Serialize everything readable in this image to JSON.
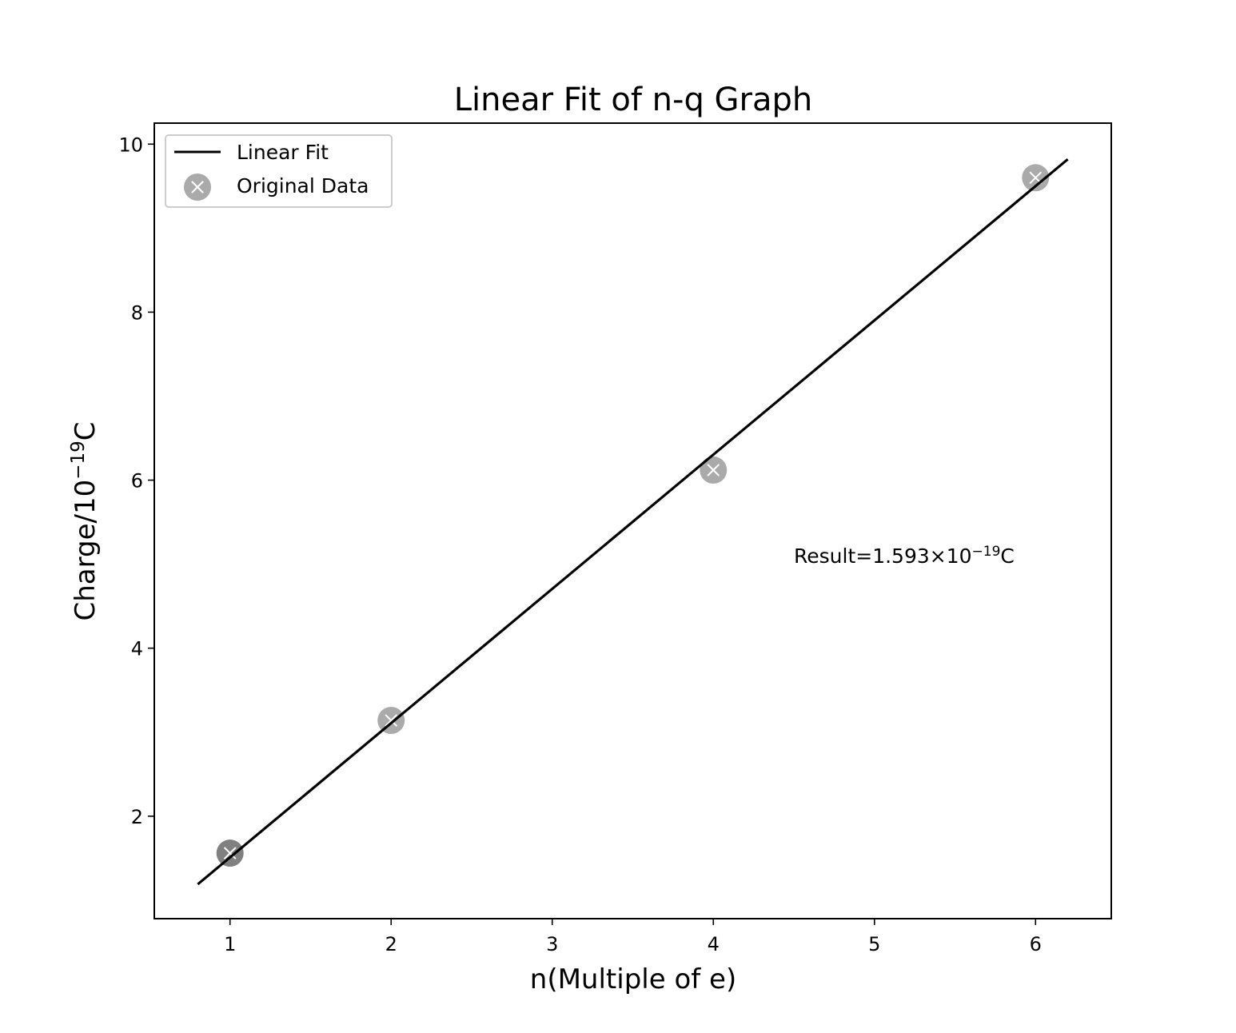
{
  "chart_data": {
    "type": "scatter",
    "title": "Linear Fit of n-q Graph",
    "xlabel": "n(Multiple of e)",
    "ylabel": {
      "base": "Charge/10",
      "exponent": "−19",
      "unit": "C"
    },
    "xlim": [
      0.53,
      6.47
    ],
    "ylim": [
      0.78,
      10.25
    ],
    "xticks": [
      1,
      2,
      3,
      4,
      5,
      6
    ],
    "yticks": [
      2,
      4,
      6,
      8,
      10
    ],
    "grid": false,
    "legend_position": "upper-left",
    "series": [
      {
        "name": "Linear Fit",
        "kind": "line",
        "x": [
          0.8,
          6.2
        ],
        "y": [
          1.19,
          9.82
        ],
        "color": "#000000"
      },
      {
        "name": "Original Data",
        "kind": "scatter",
        "marker": "circle-x",
        "x": [
          1,
          2,
          4,
          6
        ],
        "y": [
          1.56,
          3.14,
          6.12,
          9.6
        ],
        "color": "#aaaaaa",
        "highlight_color": "#808080"
      }
    ],
    "annotation": {
      "prefix": "Result=1.593×10",
      "exponent": "−19",
      "suffix": "C",
      "x": 4.5,
      "y": 5.1
    }
  }
}
